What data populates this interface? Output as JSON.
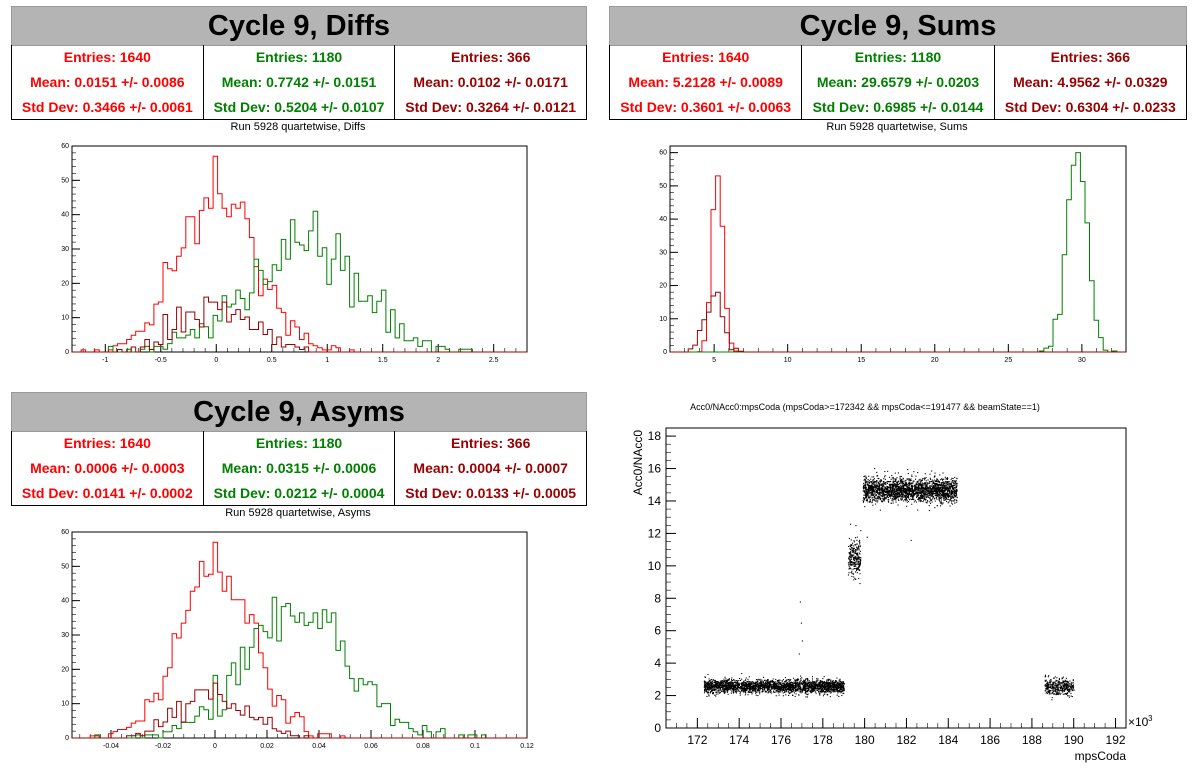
{
  "colors": {
    "red": "#ff0000",
    "green": "#008000",
    "darkred": "#990000"
  },
  "panels": {
    "diffs": {
      "title": "Cycle 9, Diffs",
      "subtitle": "Run 5928 quartetwise, Diffs",
      "stats": [
        {
          "entries": "Entries: 1640",
          "mean": "Mean: 0.0151 +/- 0.0086",
          "std": "Std Dev: 0.3466 +/- 0.0061",
          "color": "#ff0000"
        },
        {
          "entries": "Entries: 1180",
          "mean": "Mean: 0.7742 +/- 0.0151",
          "std": "Std Dev: 0.5204 +/- 0.0107",
          "color": "#008000"
        },
        {
          "entries": "Entries: 366",
          "mean": "Mean: 0.0102 +/- 0.0171",
          "std": "Std Dev: 0.3264 +/- 0.0121",
          "color": "#990000"
        }
      ]
    },
    "sums": {
      "title": "Cycle 9, Sums",
      "subtitle": "Run 5928 quartetwise, Sums",
      "stats": [
        {
          "entries": "Entries: 1640",
          "mean": "Mean: 5.2128 +/- 0.0089",
          "std": "Std Dev: 0.3601 +/- 0.0063",
          "color": "#ff0000"
        },
        {
          "entries": "Entries: 1180",
          "mean": "Mean: 29.6579 +/- 0.0203",
          "std": "Std Dev: 0.6985 +/- 0.0144",
          "color": "#008000"
        },
        {
          "entries": "Entries: 366",
          "mean": "Mean: 4.9562 +/- 0.0329",
          "std": "Std Dev: 0.6304 +/- 0.0233",
          "color": "#990000"
        }
      ]
    },
    "asyms": {
      "title": "Cycle 9, Asyms",
      "subtitle": "Run 5928 quartetwise, Asyms",
      "stats": [
        {
          "entries": "Entries: 1640",
          "mean": "Mean: 0.0006 +/- 0.0003",
          "std": "Std Dev: 0.0141 +/- 0.0002",
          "color": "#ff0000"
        },
        {
          "entries": "Entries: 1180",
          "mean": "Mean: 0.0315 +/- 0.0006",
          "std": "Std Dev: 0.0212 +/- 0.0004",
          "color": "#008000"
        },
        {
          "entries": "Entries: 366",
          "mean": "Mean: 0.0004 +/- 0.0007",
          "std": "Std Dev: 0.0133 +/- 0.0005",
          "color": "#990000"
        }
      ]
    },
    "scatter": {
      "title": "Acc0/NAcc0:mpsCoda (mpsCoda>=172342 && mpsCoda<=191477 && beamState==1)",
      "xlabel": "mpsCoda",
      "ylabel": "Acc0/NAcc0",
      "xexp": "×10",
      "xexp_power": "3"
    }
  },
  "chart_data": [
    {
      "type": "histogram",
      "name": "diffs",
      "xlim": [
        -1.3,
        2.8
      ],
      "ylim": [
        0,
        60
      ],
      "xticks": [
        -1,
        -0.5,
        0,
        0.5,
        1,
        1.5,
        2,
        2.5
      ],
      "xticklabels": [
        "-1",
        "-0.5",
        "0",
        "0.5",
        "1",
        "1.5",
        "2",
        "2.5"
      ],
      "yticks": [
        0,
        10,
        20,
        30,
        40,
        50,
        60
      ],
      "series": [
        {
          "mean": 0.0151,
          "std": 0.3466,
          "entries": 1640,
          "peak": 57,
          "color": "#ff0000"
        },
        {
          "mean": 0.7742,
          "std": 0.5204,
          "entries": 1180,
          "peak": 41,
          "color": "#008000"
        },
        {
          "mean": 0.0102,
          "std": 0.3264,
          "entries": 366,
          "peak": 16,
          "color": "#990000"
        }
      ]
    },
    {
      "type": "histogram",
      "name": "sums",
      "xlim": [
        2,
        33
      ],
      "ylim": [
        0,
        62
      ],
      "xticks": [
        5,
        10,
        15,
        20,
        25,
        30
      ],
      "xticklabels": [
        "5",
        "10",
        "15",
        "20",
        "25",
        "30"
      ],
      "yticks": [
        0,
        10,
        20,
        30,
        40,
        50,
        60
      ],
      "series": [
        {
          "mean": 5.2128,
          "std": 0.3601,
          "entries": 1640,
          "peak": 53,
          "color": "#ff0000"
        },
        {
          "mean": 29.6579,
          "std": 0.6985,
          "entries": 1180,
          "peak": 60,
          "color": "#008000"
        },
        {
          "mean": 4.9562,
          "std": 0.6304,
          "entries": 366,
          "peak": 18,
          "color": "#990000"
        }
      ]
    },
    {
      "type": "histogram",
      "name": "asyms",
      "xlim": [
        -0.055,
        0.12
      ],
      "ylim": [
        0,
        60
      ],
      "xticks": [
        -0.04,
        -0.02,
        0,
        0.02,
        0.04,
        0.06,
        0.08,
        0.1,
        0.12
      ],
      "xticklabels": [
        "-0.04",
        "-0.02",
        "0",
        "0.02",
        "0.04",
        "0.06",
        "0.08",
        "0.1",
        "0.12"
      ],
      "yticks": [
        0,
        10,
        20,
        30,
        40,
        50,
        60
      ],
      "series": [
        {
          "mean": 0.0006,
          "std": 0.0141,
          "entries": 1640,
          "peak": 57,
          "color": "#ff0000"
        },
        {
          "mean": 0.0315,
          "std": 0.0212,
          "entries": 1180,
          "peak": 41,
          "color": "#008000"
        },
        {
          "mean": 0.0004,
          "std": 0.0133,
          "entries": 366,
          "peak": 16,
          "color": "#990000"
        }
      ]
    },
    {
      "type": "scatter",
      "name": "scatter",
      "xlim": [
        170.5,
        192.5
      ],
      "ylim": [
        0,
        18.5
      ],
      "xticks": [
        172,
        174,
        176,
        178,
        180,
        182,
        184,
        186,
        188,
        190,
        192
      ],
      "xticklabels": [
        "172",
        "174",
        "176",
        "178",
        "180",
        "182",
        "184",
        "186",
        "188",
        "190",
        "192"
      ],
      "yticks": [
        0,
        2,
        4,
        6,
        8,
        10,
        12,
        14,
        16,
        18
      ],
      "yticklabels": [
        "0",
        "2",
        "4",
        "6",
        "8",
        "10",
        "12",
        "14",
        "16",
        "18"
      ],
      "clusters": [
        {
          "x": [
            172.3,
            179.0
          ],
          "y_center": 2.6,
          "y_spread": 0.35,
          "n": 2600
        },
        {
          "x": [
            179.2,
            179.8
          ],
          "y_center": 10.5,
          "y_spread": 0.9,
          "n": 260
        },
        {
          "x": [
            179.9,
            184.4
          ],
          "y_center": 14.7,
          "y_spread": 0.6,
          "n": 2300
        },
        {
          "x": [
            188.6,
            190.0
          ],
          "y_center": 2.6,
          "y_spread": 0.45,
          "n": 380
        }
      ]
    }
  ]
}
